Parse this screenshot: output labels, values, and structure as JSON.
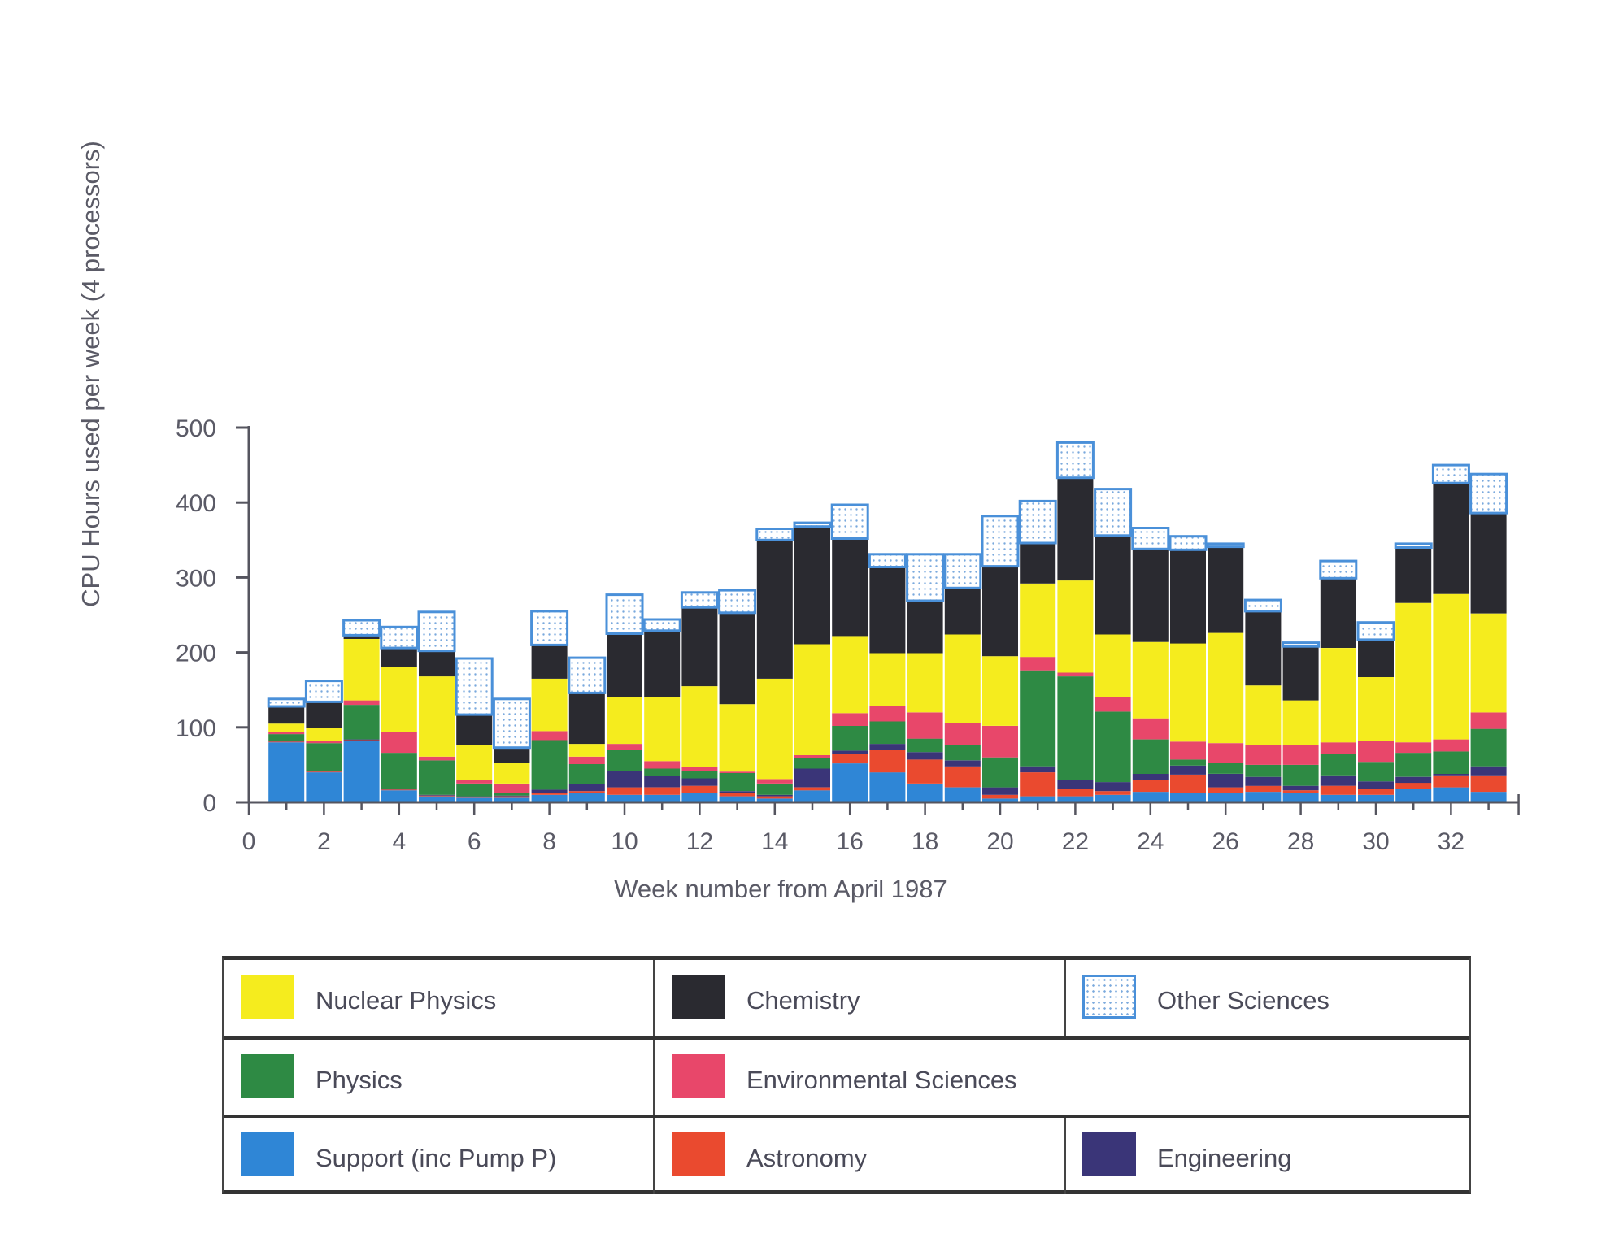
{
  "chart_data": {
    "type": "bar",
    "stacked": true,
    "ylabel": "CPU Hours used per week (4 processors)",
    "xlabel": "Week number from April 1987",
    "ylim": [
      0,
      500
    ],
    "xlim": [
      0,
      33.8
    ],
    "y_ticks": [
      0,
      100,
      200,
      300,
      400,
      500
    ],
    "x_ticks": [
      0,
      2,
      4,
      6,
      8,
      10,
      12,
      14,
      16,
      18,
      20,
      22,
      24,
      26,
      28,
      30,
      32
    ],
    "x": [
      1,
      2,
      3,
      4,
      5,
      6,
      7,
      8,
      9,
      10,
      11,
      12,
      13,
      14,
      15,
      16,
      17,
      18,
      19,
      20,
      21,
      22,
      23,
      24,
      25,
      26,
      27,
      28,
      29,
      30,
      31,
      32,
      33
    ],
    "series": [
      {
        "name": "Support (inc Pump P)",
        "key": "support",
        "color": "#2f86d6",
        "values": [
          80,
          40,
          82,
          16,
          8,
          6,
          6,
          10,
          12,
          10,
          10,
          12,
          8,
          5,
          16,
          52,
          40,
          25,
          20,
          5,
          8,
          8,
          10,
          14,
          12,
          12,
          14,
          12,
          10,
          10,
          18,
          20,
          14
        ]
      },
      {
        "name": "Astronomy",
        "key": "astronomy",
        "color": "#ea4a2f",
        "values": [
          1,
          1,
          1,
          1,
          1,
          1,
          2,
          3,
          3,
          10,
          10,
          10,
          5,
          3,
          4,
          12,
          30,
          32,
          28,
          5,
          32,
          10,
          5,
          16,
          25,
          8,
          8,
          4,
          12,
          8,
          8,
          16,
          22
        ]
      },
      {
        "name": "Engineering",
        "key": "engineering",
        "color": "#3a3578",
        "values": [
          1,
          1,
          1,
          1,
          1,
          1,
          1,
          4,
          10,
          22,
          15,
          10,
          2,
          2,
          25,
          5,
          8,
          10,
          8,
          10,
          8,
          12,
          12,
          8,
          12,
          18,
          12,
          6,
          14,
          10,
          8,
          2,
          12
        ]
      },
      {
        "name": "Physics",
        "key": "physics",
        "color": "#2e8a44",
        "values": [
          9,
          37,
          46,
          48,
          46,
          17,
          4,
          66,
          26,
          28,
          10,
          10,
          24,
          15,
          14,
          33,
          30,
          18,
          20,
          40,
          128,
          138,
          94,
          46,
          8,
          15,
          16,
          28,
          28,
          26,
          32,
          30,
          50
        ]
      },
      {
        "name": "Environmental Sciences",
        "key": "environmental",
        "color": "#e8476a",
        "values": [
          3,
          3,
          6,
          28,
          5,
          5,
          12,
          12,
          10,
          8,
          10,
          5,
          2,
          6,
          4,
          17,
          21,
          35,
          30,
          42,
          18,
          5,
          20,
          28,
          24,
          26,
          26,
          26,
          16,
          28,
          14,
          16,
          22
        ]
      },
      {
        "name": "Nuclear Physics",
        "key": "nuclear",
        "color": "#f5ec1e",
        "values": [
          11,
          17,
          82,
          87,
          107,
          47,
          28,
          70,
          17,
          62,
          86,
          108,
          90,
          134,
          148,
          103,
          70,
          79,
          118,
          93,
          98,
          123,
          83,
          102,
          131,
          147,
          80,
          60,
          126,
          85,
          186,
          194,
          132
        ]
      },
      {
        "name": "Chemistry",
        "key": "chemistry",
        "color": "#2a2a30",
        "values": [
          23,
          35,
          5,
          25,
          34,
          40,
          20,
          45,
          68,
          85,
          88,
          105,
          122,
          185,
          157,
          130,
          115,
          70,
          62,
          120,
          54,
          137,
          132,
          124,
          125,
          115,
          99,
          72,
          93,
          50,
          74,
          148,
          134
        ]
      },
      {
        "name": "Other Sciences",
        "key": "other",
        "color": "#4a90d9",
        "pattern": "dotted",
        "values": [
          10,
          28,
          20,
          28,
          52,
          75,
          65,
          45,
          47,
          52,
          15,
          20,
          30,
          15,
          5,
          45,
          17,
          62,
          45,
          67,
          56,
          47,
          62,
          28,
          18,
          4,
          15,
          5,
          23,
          23,
          5,
          24,
          52
        ]
      }
    ]
  },
  "legend": {
    "rows": [
      [
        {
          "label": "Nuclear Physics",
          "key": "nuclear"
        },
        {
          "label": "Chemistry",
          "key": "chemistry"
        },
        {
          "label": "Other Sciences",
          "key": "other"
        }
      ],
      [
        {
          "label": "Physics",
          "key": "physics"
        },
        {
          "label": "Environmental Sciences",
          "key": "environmental"
        }
      ],
      [
        {
          "label": "Support (inc Pump P)",
          "key": "support"
        },
        {
          "label": "Astronomy",
          "key": "astronomy"
        },
        {
          "label": "Engineering",
          "key": "engineering"
        }
      ]
    ]
  }
}
